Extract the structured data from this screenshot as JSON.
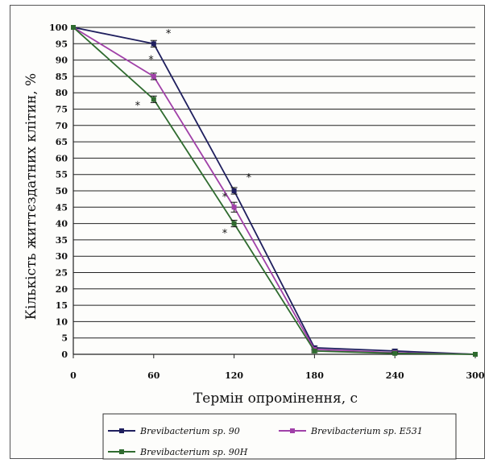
{
  "chart_data": {
    "type": "line",
    "xlabel": "Термін опромінення, с",
    "ylabel": "Кількість життєздатних клітин, %",
    "x": [
      0,
      60,
      120,
      180,
      240,
      300
    ],
    "x_tick_labels": [
      "0",
      "60",
      "120",
      "180",
      "240",
      "300"
    ],
    "y_tick_labels": [
      "0",
      "5",
      "10",
      "15",
      "20",
      "25",
      "30",
      "35",
      "40",
      "45",
      "50",
      "55",
      "60",
      "65",
      "70",
      "75",
      "80",
      "85",
      "90",
      "95",
      "100"
    ],
    "xlim": [
      0,
      300
    ],
    "ylim": [
      0,
      100
    ],
    "grid": "horizontal",
    "legend_position": "bottom",
    "series": [
      {
        "name": "Brevibacterium sp. 90",
        "color": "#1f1f5e",
        "values": [
          100,
          95,
          50,
          2,
          1,
          0
        ],
        "errors": [
          0,
          1,
          1,
          0.5,
          0.5,
          0
        ]
      },
      {
        "name": "Brevibacterium sp. E531",
        "color": "#a040a8",
        "values": [
          100,
          85,
          45,
          1.5,
          0.5,
          0
        ],
        "errors": [
          0,
          1,
          1.5,
          0.5,
          0.5,
          0
        ]
      },
      {
        "name": "Brevibacterium sp. 90H",
        "color": "#2f6b2f",
        "values": [
          100,
          78,
          40,
          1,
          0.3,
          0
        ],
        "errors": [
          0,
          1,
          1,
          0.5,
          0.3,
          0
        ]
      }
    ],
    "annotations": [
      {
        "text": "*",
        "x": 71,
        "y": 98
      },
      {
        "text": "*",
        "x": 58,
        "y": 90
      },
      {
        "text": "*",
        "x": 48,
        "y": 76
      },
      {
        "text": "*",
        "x": 131,
        "y": 54
      },
      {
        "text": "*",
        "x": 113,
        "y": 48
      },
      {
        "text": "*",
        "x": 113,
        "y": 37
      }
    ]
  }
}
